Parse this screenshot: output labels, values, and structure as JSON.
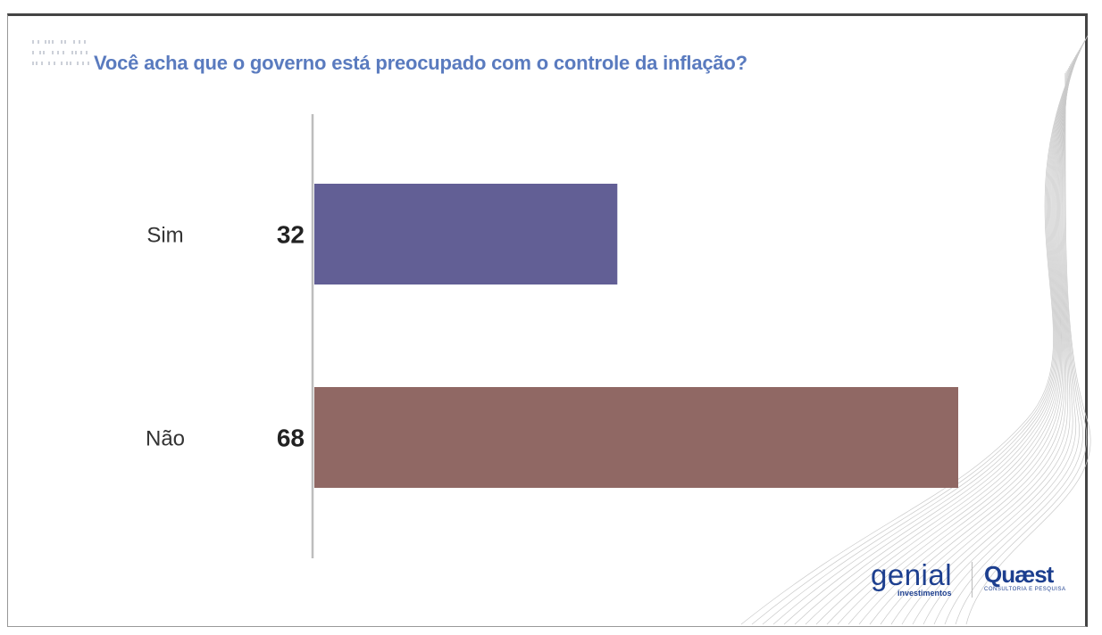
{
  "chart_data": {
    "type": "bar",
    "orientation": "horizontal",
    "title": "Você acha que o governo está preocupado com o controle da inflação?",
    "categories": [
      "Sim",
      "Não"
    ],
    "values": [
      32,
      68
    ],
    "colors": [
      "#625f95",
      "#906864"
    ],
    "xlim": [
      0,
      68
    ],
    "grid": false,
    "legend": "none"
  },
  "logos": {
    "genial": "genial",
    "genial_sub": "investimentos",
    "quaest": "Quæst",
    "quaest_sub": "CONSULTORIA E PESQUISA"
  },
  "colors": {
    "title": "#5a7bbf",
    "brand": "#1d3f8f",
    "axis": "#bdbdbd"
  }
}
